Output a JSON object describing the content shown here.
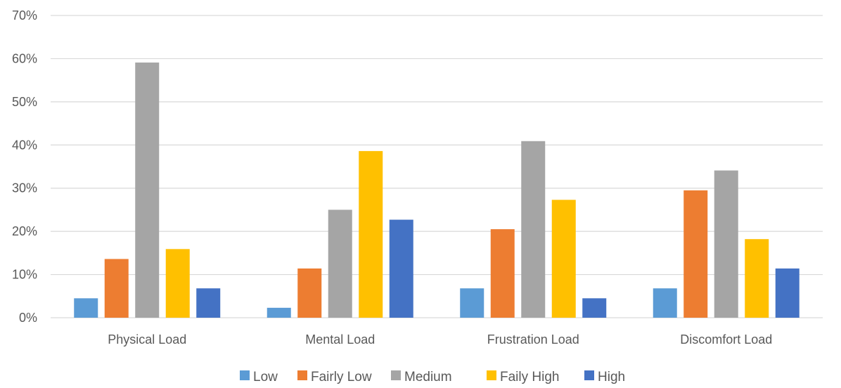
{
  "chart_data": {
    "type": "bar",
    "title": "",
    "xlabel": "",
    "ylabel": "",
    "ylim": [
      0,
      70
    ],
    "y_ticks": [
      "0%",
      "10%",
      "20%",
      "30%",
      "40%",
      "50%",
      "60%",
      "70%"
    ],
    "y_tick_values": [
      0,
      10,
      20,
      30,
      40,
      50,
      60,
      70
    ],
    "grid": true,
    "legend_position": "bottom",
    "categories": [
      "Physical Load",
      "Mental Load",
      "Frustration Load",
      "Discomfort Load"
    ],
    "series": [
      {
        "name": "Low",
        "color": "#5B9BD5",
        "values": [
          4.5,
          2.3,
          6.8,
          6.8
        ]
      },
      {
        "name": "Fairly Low",
        "color": "#ED7D31",
        "values": [
          13.6,
          11.4,
          20.5,
          29.5
        ]
      },
      {
        "name": "Medium",
        "color": "#A5A5A5",
        "values": [
          59.1,
          25.0,
          40.9,
          34.1
        ]
      },
      {
        "name": "Faily High",
        "color": "#FFC000",
        "values": [
          15.9,
          38.6,
          27.3,
          18.2
        ]
      },
      {
        "name": "High",
        "color": "#4472C4",
        "values": [
          6.8,
          22.7,
          4.5,
          11.4
        ]
      }
    ]
  }
}
